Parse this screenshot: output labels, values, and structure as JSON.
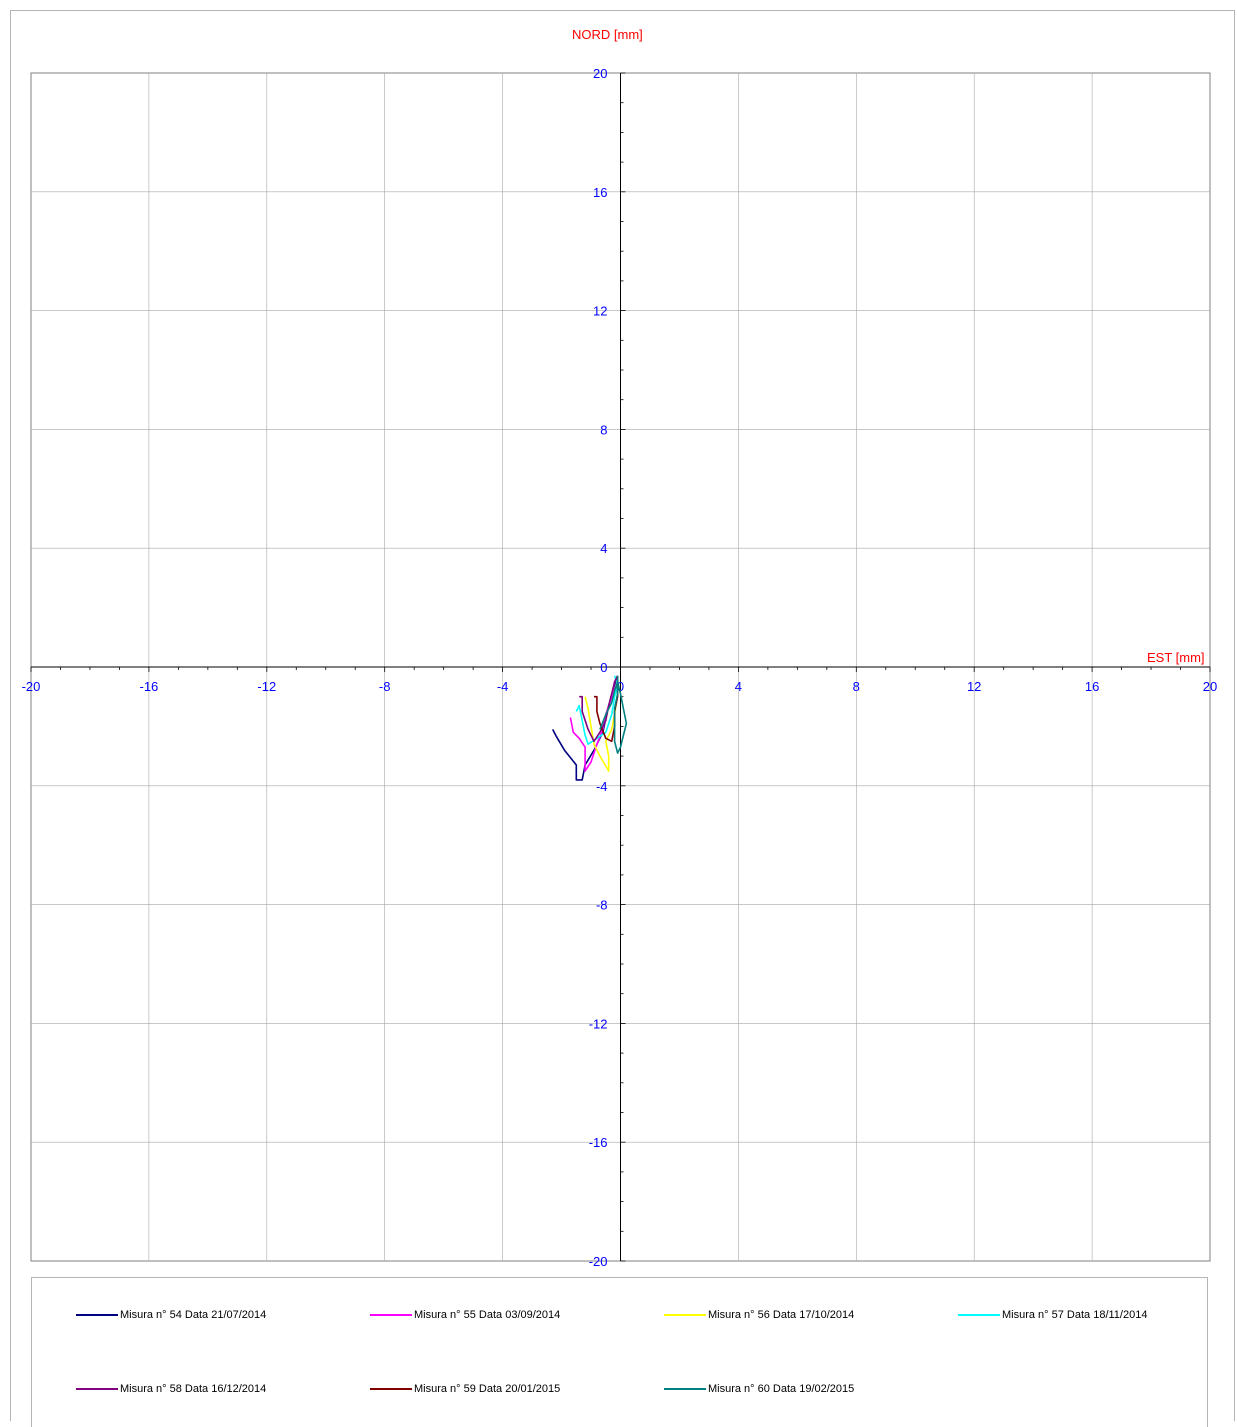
{
  "chart_data": {
    "type": "line",
    "title": "",
    "ylabel": "NORD  [mm]",
    "xlabel": "EST [mm]",
    "xlim": [
      -20,
      20
    ],
    "ylim": [
      -20,
      20
    ],
    "x_ticks": [
      -20,
      -16,
      -12,
      -8,
      -4,
      0,
      4,
      8,
      12,
      16,
      20
    ],
    "y_ticks": [
      -20,
      -16,
      -12,
      -8,
      -4,
      0,
      4,
      8,
      12,
      16,
      20
    ],
    "grid": true,
    "legend_position": "bottom",
    "series": [
      {
        "name": "Misura n° 54 Data 21/07/2014",
        "color": "#000080",
        "points": [
          [
            -2.3,
            -2.1
          ],
          [
            -2.2,
            -2.3
          ],
          [
            -1.9,
            -2.8
          ],
          [
            -1.5,
            -3.3
          ],
          [
            -1.5,
            -3.8
          ],
          [
            -1.3,
            -3.8
          ],
          [
            -1.2,
            -3.3
          ],
          [
            -0.9,
            -2.8
          ],
          [
            -0.6,
            -2.2
          ],
          [
            -0.4,
            -1.3
          ],
          [
            -0.2,
            -0.6
          ],
          [
            -0.1,
            -0.3
          ]
        ]
      },
      {
        "name": "Misura n° 55 Data 03/09/2014",
        "color": "#ff00ff",
        "points": [
          [
            -1.7,
            -1.7
          ],
          [
            -1.6,
            -2.2
          ],
          [
            -1.4,
            -2.4
          ],
          [
            -1.2,
            -2.7
          ],
          [
            -1.2,
            -3.5
          ],
          [
            -1.0,
            -3.2
          ],
          [
            -0.8,
            -2.6
          ],
          [
            -0.6,
            -2.1
          ],
          [
            -0.5,
            -1.6
          ],
          [
            -0.3,
            -1.0
          ],
          [
            -0.2,
            -0.5
          ],
          [
            -0.1,
            -0.3
          ]
        ]
      },
      {
        "name": "Misura n° 56 Data 17/10/2014",
        "color": "#ffff00",
        "points": [
          [
            -1.2,
            -1.0
          ],
          [
            -1.1,
            -1.4
          ],
          [
            -1.0,
            -2.0
          ],
          [
            -0.9,
            -2.6
          ],
          [
            -0.7,
            -3.0
          ],
          [
            -0.4,
            -3.5
          ],
          [
            -0.4,
            -3.0
          ],
          [
            -0.5,
            -2.5
          ],
          [
            -0.3,
            -2.1
          ],
          [
            -0.2,
            -1.6
          ],
          [
            -0.1,
            -0.9
          ],
          [
            -0.1,
            -0.3
          ]
        ]
      },
      {
        "name": "Misura n° 57 Data 18/11/2014",
        "color": "#00ffff",
        "points": [
          [
            -1.5,
            -1.5
          ],
          [
            -1.4,
            -1.3
          ],
          [
            -1.3,
            -1.8
          ],
          [
            -1.2,
            -2.3
          ],
          [
            -1.1,
            -2.6
          ],
          [
            -0.8,
            -2.4
          ],
          [
            -0.5,
            -2.2
          ],
          [
            -0.3,
            -1.6
          ],
          [
            -0.2,
            -1.0
          ],
          [
            -0.1,
            -0.6
          ],
          [
            -0.2,
            -0.3
          ]
        ]
      },
      {
        "name": "Misura n° 58 Data 16/12/2014",
        "color": "#800080",
        "points": [
          [
            -1.4,
            -1.0
          ],
          [
            -1.3,
            -1.0
          ],
          [
            -1.3,
            -1.5
          ],
          [
            -1.1,
            -2.1
          ],
          [
            -0.9,
            -2.5
          ],
          [
            -0.7,
            -2.2
          ],
          [
            -0.5,
            -1.8
          ],
          [
            -0.4,
            -1.3
          ],
          [
            -0.3,
            -0.9
          ],
          [
            -0.2,
            -0.5
          ],
          [
            -0.1,
            -0.3
          ]
        ]
      },
      {
        "name": "Misura n° 59 Data 20/01/2015",
        "color": "#800000",
        "points": [
          [
            -0.9,
            -1.0
          ],
          [
            -0.8,
            -1.0
          ],
          [
            -0.8,
            -1.5
          ],
          [
            -0.7,
            -1.9
          ],
          [
            -0.5,
            -2.4
          ],
          [
            -0.3,
            -2.5
          ],
          [
            -0.2,
            -2.0
          ],
          [
            -0.2,
            -1.5
          ],
          [
            -0.1,
            -1.0
          ],
          [
            -0.1,
            -0.6
          ],
          [
            -0.1,
            -0.3
          ]
        ]
      },
      {
        "name": "Misura n° 60 Data 19/02/2015",
        "color": "#008080",
        "points": [
          [
            -0.7,
            -2.1
          ],
          [
            -0.5,
            -1.6
          ],
          [
            -0.3,
            -1.2
          ],
          [
            -0.2,
            -0.8
          ],
          [
            -0.1,
            -0.5
          ],
          [
            0.0,
            -0.9
          ],
          [
            0.1,
            -1.4
          ],
          [
            0.2,
            -1.9
          ],
          [
            0.1,
            -2.3
          ],
          [
            0.0,
            -2.7
          ],
          [
            -0.1,
            -2.9
          ],
          [
            -0.2,
            -2.5
          ],
          [
            -0.2,
            -2.0
          ],
          [
            -0.2,
            -1.4
          ],
          [
            -0.1,
            -0.9
          ],
          [
            -0.1,
            -0.3
          ]
        ]
      }
    ]
  }
}
